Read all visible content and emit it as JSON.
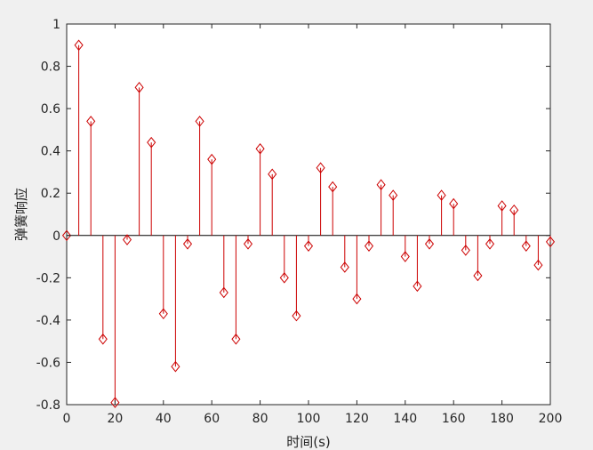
{
  "chart_data": {
    "type": "stem",
    "xlabel": "时间(s)",
    "ylabel": "弹簧响应",
    "xlim": [
      0,
      200
    ],
    "ylim": [
      -0.8,
      1
    ],
    "xticks": [
      0,
      20,
      40,
      60,
      80,
      100,
      120,
      140,
      160,
      180,
      200
    ],
    "yticks": [
      -0.8,
      -0.6,
      -0.4,
      -0.2,
      0,
      0.2,
      0.4,
      0.6,
      0.8,
      1
    ],
    "ytick_labels": [
      "-0.8",
      "-0.6",
      "-0.4",
      "-0.2",
      "0",
      "0.2",
      "0.4",
      "0.6",
      "0.8",
      "1"
    ],
    "grid": false,
    "marker": "diamond",
    "color": "#cc0000",
    "x": [
      0,
      5,
      10,
      15,
      20,
      25,
      30,
      35,
      40,
      45,
      50,
      55,
      60,
      65,
      70,
      75,
      80,
      85,
      90,
      95,
      100,
      105,
      110,
      115,
      120,
      125,
      130,
      135,
      140,
      145,
      150,
      155,
      160,
      165,
      170,
      175,
      180,
      185,
      190,
      195,
      200
    ],
    "y": [
      0,
      0.9,
      0.54,
      -0.49,
      -0.79,
      -0.02,
      0.7,
      0.44,
      -0.37,
      -0.62,
      -0.04,
      0.54,
      0.36,
      -0.27,
      -0.49,
      -0.04,
      0.41,
      0.29,
      -0.2,
      -0.38,
      -0.05,
      0.32,
      0.23,
      -0.15,
      -0.3,
      -0.05,
      0.24,
      0.19,
      -0.1,
      -0.24,
      -0.04,
      0.19,
      0.15,
      -0.07,
      -0.19,
      -0.04,
      0.14,
      0.12,
      -0.05,
      -0.14,
      -0.03
    ]
  }
}
